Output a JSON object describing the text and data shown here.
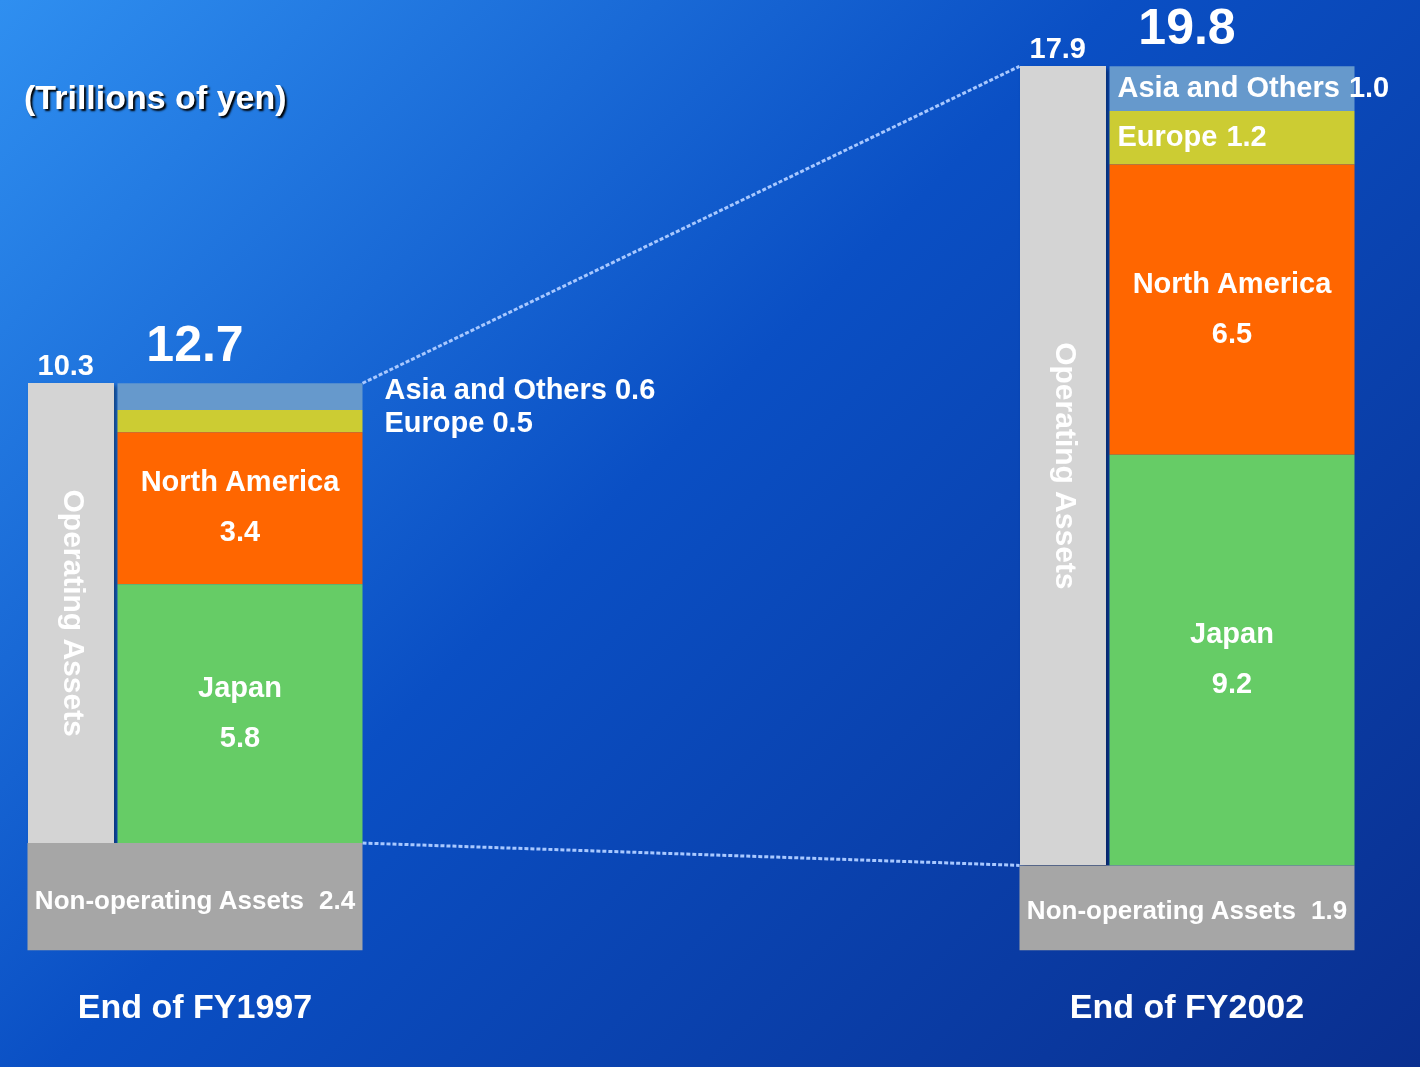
{
  "chart_data": {
    "type": "bar",
    "stacked": true,
    "ylabel": "(Trillions of yen)",
    "categories": [
      "End of FY1997",
      "End of FY2002"
    ],
    "series": [
      {
        "name": "Non-operating Assets",
        "color": "#a6a6a6",
        "values": [
          2.4,
          1.9
        ],
        "value_labels": [
          "2.4",
          "1.9"
        ]
      },
      {
        "name": "Japan",
        "color": "#66cc66",
        "values": [
          5.8,
          9.2
        ],
        "value_labels": [
          "5.8",
          "9.2"
        ]
      },
      {
        "name": "North America",
        "color": "#ff6600",
        "values": [
          3.4,
          6.5
        ],
        "value_labels": [
          "3.4",
          "6.5"
        ]
      },
      {
        "name": "Europe",
        "color": "#cccc33",
        "values": [
          0.5,
          1.2
        ],
        "value_labels": [
          null,
          "1.2"
        ]
      },
      {
        "name": "Asia and Others",
        "color": "#6699cc",
        "values": [
          0.6,
          1.0
        ],
        "value_labels": [
          null,
          "1.0"
        ]
      }
    ],
    "annotations": [
      "Operating Assets",
      "10.3",
      "Operating Assets",
      "17.9",
      "Asia and Others 0.6",
      "Europe 0.5"
    ],
    "totals": [
      "12.7",
      "19.8"
    ],
    "grid": false,
    "legend": false
  }
}
